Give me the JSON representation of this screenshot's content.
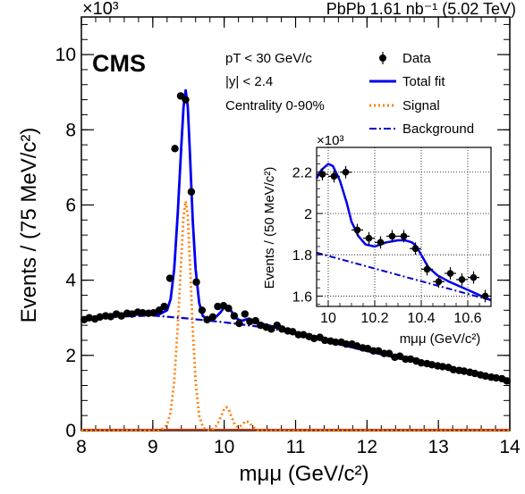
{
  "header": {
    "exponent_main": "×10³",
    "dataset": "PbPb 1.61 nb⁻¹ (5.02 TeV)",
    "experiment": "CMS"
  },
  "selections": [
    "pT < 30 GeV/c",
    "|y| < 2.4",
    "Centrality 0-90%"
  ],
  "legend": {
    "data": "Data",
    "total": "Total fit",
    "signal": "Signal",
    "background": "Background"
  },
  "colors": {
    "data": "#000000",
    "total": "#0000ee",
    "signal": "#ff7f0e",
    "background": "#0000cc",
    "zero_line": "#cc3300"
  },
  "chart_data": [
    {
      "type": "scatter",
      "xlabel": "mμμ (GeV/c²)",
      "ylabel": "Events / (75 MeV/c²)",
      "y_multiplier": "×10³",
      "xlim": [
        8,
        14
      ],
      "ylim": [
        0,
        11
      ],
      "xticks": [
        8,
        9,
        10,
        11,
        12,
        13,
        14
      ],
      "yticks": [
        0,
        2,
        4,
        6,
        8,
        10
      ],
      "series": [
        {
          "name": "Data",
          "x": [
            8.04,
            8.11,
            8.19,
            8.26,
            8.34,
            8.41,
            8.49,
            8.56,
            8.64,
            8.71,
            8.79,
            8.86,
            8.94,
            9.01,
            9.09,
            9.16,
            9.24,
            9.31,
            9.39,
            9.46,
            9.54,
            9.61,
            9.69,
            9.76,
            9.84,
            9.91,
            9.99,
            10.06,
            10.14,
            10.21,
            10.29,
            10.36,
            10.44,
            10.51,
            10.59,
            10.66,
            10.74,
            10.81,
            10.89,
            10.96,
            11.04,
            11.11,
            11.19,
            11.26,
            11.34,
            11.41,
            11.49,
            11.56,
            11.64,
            11.71,
            11.79,
            11.86,
            11.94,
            12.01,
            12.09,
            12.16,
            12.24,
            12.31,
            12.39,
            12.46,
            12.54,
            12.61,
            12.69,
            12.76,
            12.84,
            12.91,
            12.99,
            13.06,
            13.14,
            13.21,
            13.29,
            13.36,
            13.44,
            13.51,
            13.59,
            13.66,
            13.74,
            13.81,
            13.89,
            13.96
          ],
          "y": [
            2.95,
            3.0,
            2.97,
            3.02,
            3.05,
            3.03,
            3.1,
            3.05,
            3.12,
            3.1,
            3.15,
            3.13,
            3.12,
            3.13,
            3.2,
            3.3,
            4.05,
            7.5,
            8.9,
            8.8,
            6.35,
            3.95,
            3.2,
            2.95,
            3.02,
            3.3,
            3.32,
            3.25,
            3.05,
            2.85,
            3.1,
            2.9,
            2.92,
            2.8,
            2.75,
            2.7,
            2.8,
            2.7,
            2.65,
            2.63,
            2.55,
            2.55,
            2.5,
            2.45,
            2.48,
            2.4,
            2.38,
            2.35,
            2.35,
            2.3,
            2.3,
            2.25,
            2.2,
            2.18,
            2.12,
            2.12,
            2.05,
            2.05,
            1.95,
            1.98,
            1.9,
            1.9,
            1.85,
            1.8,
            1.78,
            1.75,
            1.72,
            1.7,
            1.68,
            1.62,
            1.6,
            1.58,
            1.55,
            1.52,
            1.48,
            1.45,
            1.42,
            1.4,
            1.38,
            1.32
          ]
        },
        {
          "name": "Total fit",
          "x": [
            8.0,
            8.2,
            8.4,
            8.6,
            8.8,
            9.0,
            9.1,
            9.2,
            9.25,
            9.3,
            9.35,
            9.4,
            9.43,
            9.46,
            9.49,
            9.52,
            9.56,
            9.6,
            9.65,
            9.7,
            9.75,
            9.8,
            9.85,
            9.9,
            9.95,
            10.0,
            10.03,
            10.06,
            10.1,
            10.15,
            10.2,
            10.25,
            10.3,
            10.35,
            10.4,
            10.5,
            10.7,
            11.0,
            11.5,
            12.0,
            12.5,
            13.0,
            13.5,
            14.0
          ],
          "y": [
            2.93,
            2.98,
            3.02,
            3.06,
            3.09,
            3.1,
            3.1,
            3.2,
            3.5,
            4.3,
            5.8,
            7.6,
            8.6,
            9.05,
            8.6,
            7.4,
            5.6,
            4.3,
            3.4,
            3.05,
            2.98,
            2.98,
            3.0,
            3.05,
            3.15,
            3.28,
            3.3,
            3.28,
            3.18,
            3.02,
            2.95,
            2.92,
            2.95,
            2.98,
            2.9,
            2.85,
            2.76,
            2.6,
            2.35,
            2.12,
            1.9,
            1.72,
            1.52,
            1.3
          ]
        },
        {
          "name": "Signal",
          "x": [
            8.0,
            9.1,
            9.2,
            9.25,
            9.3,
            9.35,
            9.4,
            9.43,
            9.46,
            9.49,
            9.52,
            9.56,
            9.6,
            9.65,
            9.7,
            9.75,
            9.8,
            9.85,
            9.9,
            9.95,
            10.0,
            10.03,
            10.06,
            10.1,
            10.15,
            10.2,
            10.25,
            10.3,
            10.35,
            10.4,
            10.45,
            10.5,
            14.0
          ],
          "y": [
            0,
            0,
            0.15,
            0.5,
            1.3,
            2.8,
            4.6,
            5.7,
            6.1,
            5.7,
            4.5,
            2.7,
            1.3,
            0.4,
            0.1,
            0.02,
            0.02,
            0.05,
            0.15,
            0.35,
            0.58,
            0.62,
            0.58,
            0.38,
            0.15,
            0.08,
            0.15,
            0.25,
            0.22,
            0.1,
            0.03,
            0,
            0
          ]
        },
        {
          "name": "Background",
          "x": [
            8.0,
            8.5,
            9.0,
            9.5,
            10.0,
            10.5,
            11.0,
            11.5,
            12.0,
            12.5,
            13.0,
            13.5,
            14.0
          ],
          "y": [
            2.93,
            3.03,
            3.06,
            2.98,
            2.88,
            2.76,
            2.6,
            2.38,
            2.15,
            1.92,
            1.7,
            1.5,
            1.3
          ]
        }
      ]
    },
    {
      "type": "scatter",
      "xlabel": "mμμ (GeV/c²)",
      "ylabel": "Events / (50 MeV/c²)",
      "y_multiplier": "×10³",
      "xlim": [
        9.95,
        10.7
      ],
      "ylim": [
        1.55,
        2.32
      ],
      "xticks": [
        10,
        10.2,
        10.4,
        10.6
      ],
      "xtick_labels": [
        "10",
        "10.2",
        "10.4",
        "10.6"
      ],
      "yticks": [
        1.6,
        1.8,
        2.0,
        2.2
      ],
      "ytick_labels": [
        "1.6",
        "1.8",
        "2",
        "2.2"
      ],
      "grid": true,
      "series": [
        {
          "name": "Data",
          "x": [
            9.975,
            10.025,
            10.075,
            10.125,
            10.175,
            10.225,
            10.275,
            10.325,
            10.375,
            10.425,
            10.475,
            10.525,
            10.575,
            10.625,
            10.675
          ],
          "y": [
            2.19,
            2.18,
            2.2,
            1.92,
            1.88,
            1.86,
            1.89,
            1.89,
            1.83,
            1.73,
            1.67,
            1.71,
            1.68,
            1.69,
            1.6
          ],
          "err": [
            0.03,
            0.03,
            0.03,
            0.03,
            0.03,
            0.03,
            0.03,
            0.03,
            0.03,
            0.03,
            0.03,
            0.03,
            0.03,
            0.03,
            0.03
          ]
        },
        {
          "name": "Total fit",
          "x": [
            9.95,
            9.97,
            10.0,
            10.02,
            10.05,
            10.08,
            10.1,
            10.13,
            10.16,
            10.2,
            10.25,
            10.3,
            10.33,
            10.36,
            10.38,
            10.4,
            10.43,
            10.47,
            10.52,
            10.6,
            10.7
          ],
          "y": [
            2.17,
            2.21,
            2.24,
            2.23,
            2.16,
            2.05,
            1.96,
            1.89,
            1.85,
            1.84,
            1.86,
            1.87,
            1.87,
            1.86,
            1.84,
            1.8,
            1.74,
            1.7,
            1.67,
            1.63,
            1.58
          ]
        },
        {
          "name": "Background",
          "x": [
            9.95,
            10.7
          ],
          "y": [
            1.81,
            1.58
          ]
        }
      ]
    }
  ]
}
